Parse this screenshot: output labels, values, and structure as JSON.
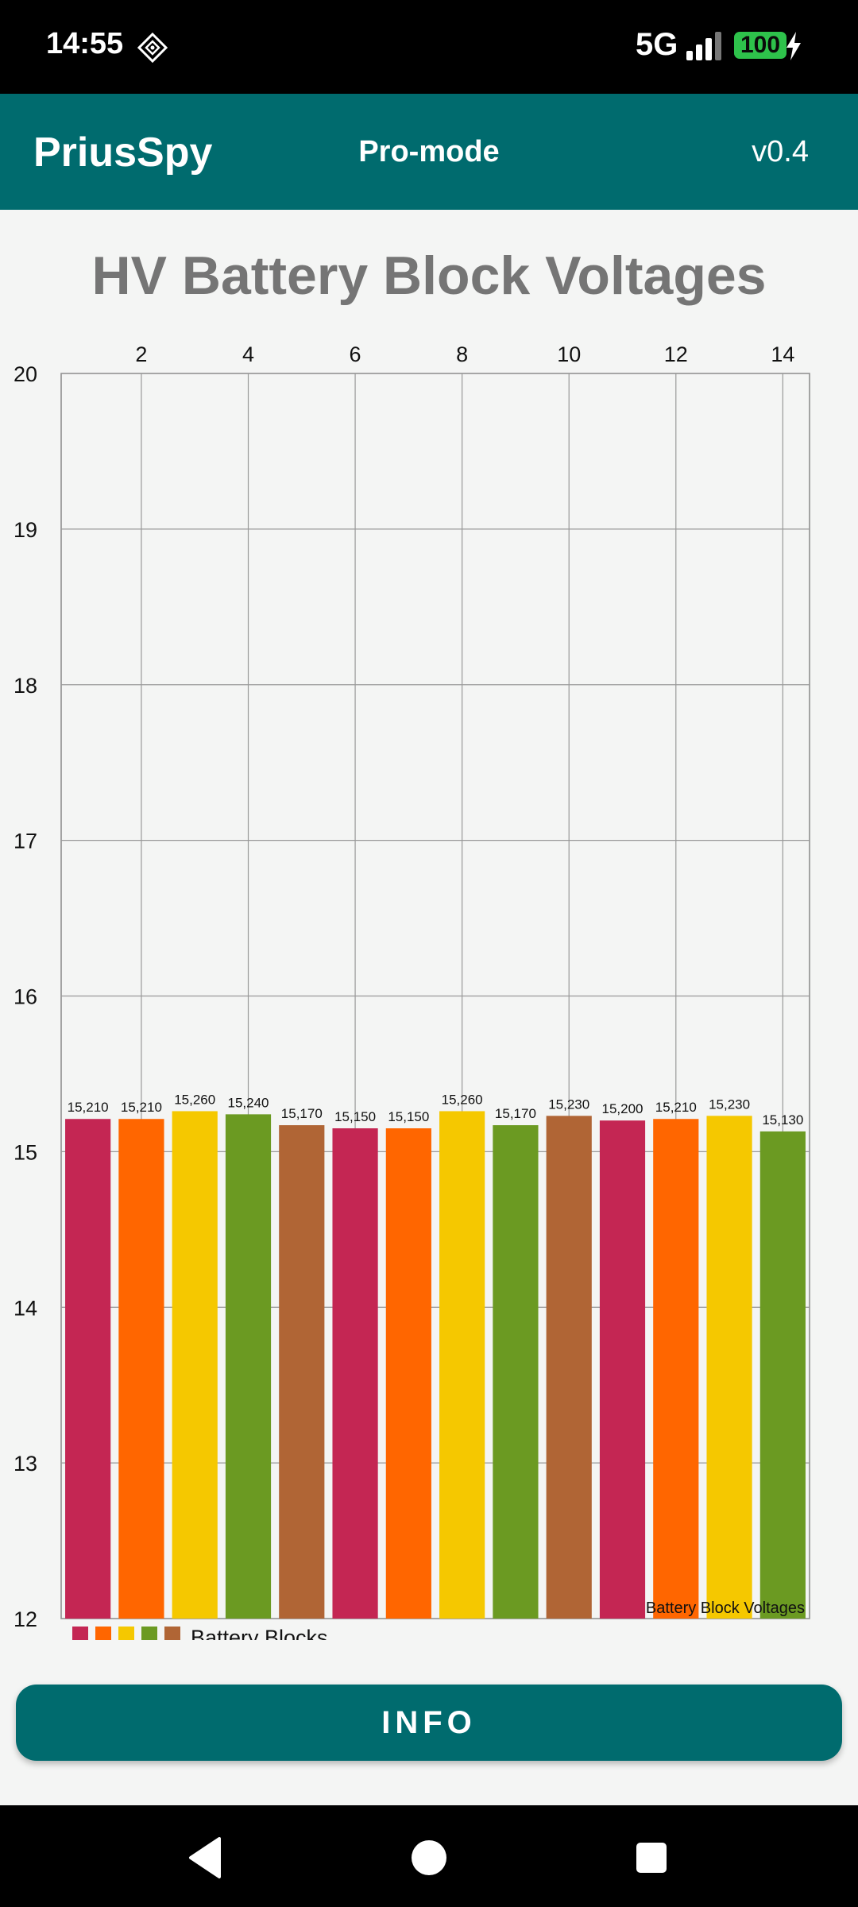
{
  "status_bar": {
    "time": "14:55",
    "network": "5G",
    "battery": "100"
  },
  "app_bar": {
    "title": "PriusSpy",
    "mode": "Pro-mode",
    "version": "v0.4"
  },
  "colors": {
    "accent": "#006b6e",
    "series_colors": [
      "#c42653",
      "#ff6600",
      "#f5c800",
      "#6b9a22",
      "#b06535"
    ]
  },
  "chart_data": {
    "type": "bar",
    "title": "HV Battery Block Voltages",
    "description_label": "Battery Block Voltages",
    "legend_label": "Battery Blocks",
    "x_ticks": [
      "2",
      "4",
      "6",
      "8",
      "10",
      "12",
      "14"
    ],
    "y_ticks": [
      "12",
      "13",
      "14",
      "15",
      "16",
      "17",
      "18",
      "19",
      "20"
    ],
    "ylim": [
      12,
      20
    ],
    "xlim": [
      0.5,
      14.5
    ],
    "x_axis_position": "top",
    "grid": true,
    "legend_position": "bottom-left",
    "values": [
      15.21,
      15.21,
      15.26,
      15.24,
      15.17,
      15.15,
      15.15,
      15.26,
      15.17,
      15.23,
      15.2,
      15.21,
      15.23,
      15.13
    ],
    "value_labels": [
      "15,210",
      "15,210",
      "15,260",
      "15,240",
      "15,170",
      "15,150",
      "15,150",
      "15,260",
      "15,170",
      "15,230",
      "15,200",
      "15,210",
      "15,230",
      "15,130"
    ]
  },
  "info_button": {
    "label": "INFO"
  }
}
